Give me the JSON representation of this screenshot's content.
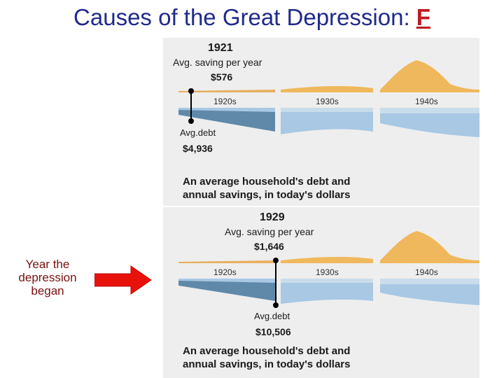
{
  "title": {
    "main": "Causes of the Great Depression: ",
    "accent": "F"
  },
  "side_label": "Year the depression began",
  "colors": {
    "title": "#1f2a8a",
    "accent": "#c0191f",
    "arrow": "#e8120c",
    "savings": "#f0b85c",
    "debt_light": "#a8c8e4",
    "debt_dark": "#6088a8"
  },
  "decades": [
    "1920s",
    "1930s",
    "1940s"
  ],
  "panels": [
    {
      "year": "1921",
      "saving_label": "Avg. saving per year",
      "saving_amount": "$576",
      "debt_label": "Avg.debt",
      "debt_amount": "$4,936",
      "caption_line1": "An average household's debt and",
      "caption_line2": "annual savings, in today's dollars"
    },
    {
      "year": "1929",
      "saving_label": "Avg. saving per year",
      "saving_amount": "$1,646",
      "debt_label": "Avg.debt",
      "debt_amount": "$10,506",
      "caption_line1": "An average household's debt and",
      "caption_line2": "annual savings, in today's dollars"
    }
  ]
}
